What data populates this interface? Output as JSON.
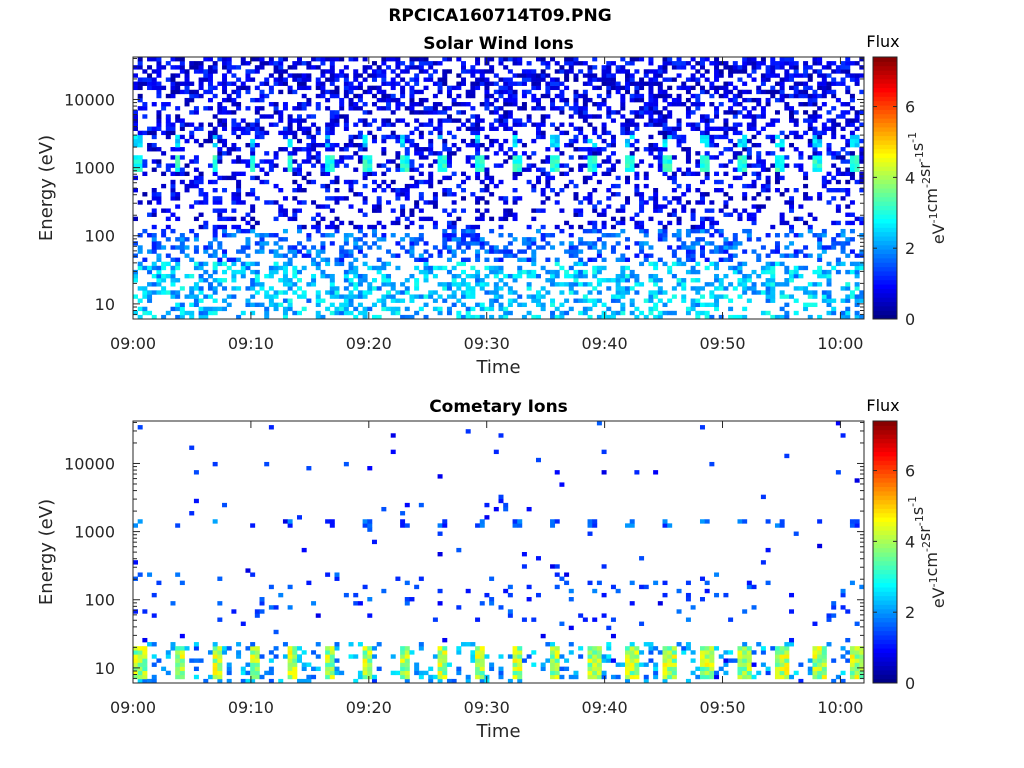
{
  "figure_title": "RPCICA160714T09.PNG",
  "colorbar": {
    "label": "Flux",
    "unit_base": "eV",
    "unit_parts": [
      {
        "text": "eV",
        "sup": "-1"
      },
      {
        "text": "cm",
        "sup": "-2"
      },
      {
        "text": "sr",
        "sup": "-1"
      },
      {
        "text": "s",
        "sup": "-1"
      }
    ],
    "ticks": [
      "0",
      "2",
      "4",
      "6"
    ],
    "range": [
      0,
      7.4
    ]
  },
  "chart_data": [
    {
      "type": "heatmap",
      "title": "Solar Wind Ions",
      "xlabel": "Time",
      "ylabel": "Energy (eV)",
      "y_scale": "log",
      "ylim": [
        6,
        42000
      ],
      "xlim": [
        "09:00",
        "10:02"
      ],
      "x_ticks": [
        "09:00",
        "09:10",
        "09:20",
        "09:30",
        "09:40",
        "09:50",
        "10:00"
      ],
      "y_ticks": [
        "10",
        "100",
        "1000",
        "10000"
      ],
      "colormap": "jet",
      "notable_features": [
        {
          "energy_eV": 1200,
          "flux": 3.0,
          "period_min": 3.2,
          "description": "periodic green/cyan band"
        },
        {
          "energy_eV": 2400,
          "flux": 2.5,
          "period_min": 3.2,
          "description": "periodic cyan band"
        },
        {
          "energy_range_eV": [
            6,
            40
          ],
          "flux_range": [
            2.0,
            3.0
          ],
          "description": "cyan low-energy blocks"
        },
        {
          "energy_range_eV": [
            40,
            40000
          ],
          "flux_range": [
            0.3,
            1.5
          ],
          "description": "sparse blue background"
        }
      ]
    },
    {
      "type": "heatmap",
      "title": "Cometary Ions",
      "xlabel": "Time",
      "ylabel": "Energy (eV)",
      "y_scale": "log",
      "ylim": [
        6,
        42000
      ],
      "xlim": [
        "09:00",
        "10:02"
      ],
      "x_ticks": [
        "09:00",
        "09:10",
        "09:20",
        "09:30",
        "09:40",
        "09:50",
        "10:00"
      ],
      "y_ticks": [
        "10",
        "100",
        "1000",
        "10000"
      ],
      "colormap": "jet",
      "notable_features": [
        {
          "energy_range_eV": [
            7,
            22
          ],
          "flux_range": [
            3.5,
            4.8
          ],
          "period_min": 3.2,
          "description": "periodic yellow-green blocks"
        },
        {
          "energy_eV": 1300,
          "flux": 1.5,
          "period_min": 3.2,
          "description": "periodic blue/cyan band"
        },
        {
          "energy_range_eV": [
            25,
            40000
          ],
          "flux_range": [
            0.6,
            2.0
          ],
          "description": "very sparse blue specks"
        }
      ]
    }
  ]
}
